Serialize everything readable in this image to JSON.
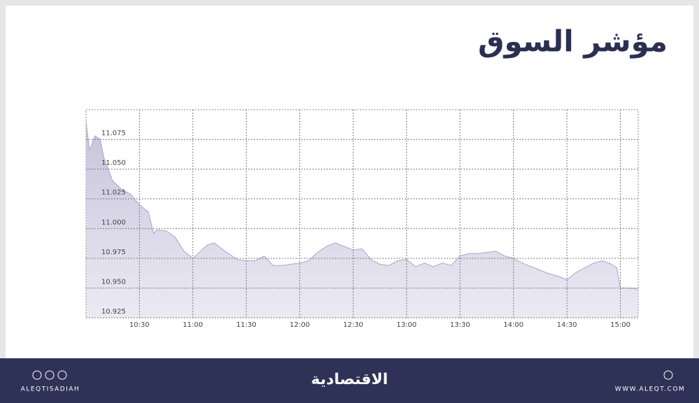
{
  "chart_data": {
    "type": "area",
    "title": "مؤشر السوق",
    "x": [
      "10:00",
      "10:02",
      "10:05",
      "10:08",
      "10:10",
      "10:15",
      "10:20",
      "10:25",
      "10:30",
      "10:35",
      "10:38",
      "10:40",
      "10:45",
      "10:50",
      "10:55",
      "11:00",
      "11:05",
      "11:08",
      "11:12",
      "11:18",
      "11:25",
      "11:30",
      "11:35",
      "11:40",
      "11:45",
      "11:50",
      "11:55",
      "12:00",
      "12:05",
      "12:10",
      "12:15",
      "12:20",
      "12:25",
      "12:30",
      "12:35",
      "12:40",
      "12:45",
      "12:50",
      "12:55",
      "13:00",
      "13:05",
      "13:10",
      "13:15",
      "13:20",
      "13:25",
      "13:30",
      "13:35",
      "13:40",
      "13:45",
      "13:50",
      "13:55",
      "14:00",
      "14:05",
      "14:10",
      "14:15",
      "14:20",
      "14:25",
      "14:30",
      "14:35",
      "14:40",
      "14:45",
      "14:50",
      "14:55",
      "14:58",
      "15:00",
      "15:05",
      "15:10"
    ],
    "values": [
      11.09,
      11.066,
      11.078,
      11.075,
      11.06,
      11.04,
      11.033,
      11.029,
      11.02,
      11.014,
      10.996,
      10.999,
      10.998,
      10.993,
      10.981,
      10.975,
      10.982,
      10.986,
      10.988,
      10.981,
      10.974,
      10.973,
      10.973,
      10.977,
      10.969,
      10.969,
      10.97,
      10.971,
      10.973,
      10.98,
      10.985,
      10.988,
      10.985,
      10.982,
      10.983,
      10.974,
      10.97,
      10.969,
      10.973,
      10.974,
      10.968,
      10.971,
      10.968,
      10.971,
      10.969,
      10.977,
      10.979,
      10.979,
      10.98,
      10.981,
      10.977,
      10.975,
      10.971,
      10.968,
      10.965,
      10.962,
      10.96,
      10.957,
      10.963,
      10.967,
      10.971,
      10.973,
      10.97,
      10.967,
      10.95,
      10.95,
      10.949
    ],
    "color": "#c7c3dc",
    "xlim": [
      "10:00",
      "15:10"
    ],
    "xticks": [
      "10:30",
      "11:00",
      "11:30",
      "12:00",
      "12:30",
      "13:00",
      "13:30",
      "14:00",
      "14:30",
      "15:00"
    ],
    "ylim": [
      10.925,
      11.1
    ],
    "yticks": [
      {
        "value": 10.925,
        "label": "10.925"
      },
      {
        "value": 10.95,
        "label": "10.950"
      },
      {
        "value": 10.975,
        "label": "10.975"
      },
      {
        "value": 11,
        "label": "11.000"
      },
      {
        "value": 11.025,
        "label": "11.025"
      },
      {
        "value": 11.05,
        "label": "11.050"
      },
      {
        "value": 11.075,
        "label": "11.075"
      }
    ],
    "grid": true
  },
  "footer": {
    "social": "ALEQTISADIAH",
    "logo": "الاقتصادية",
    "website": "WWW.ALEQT.COM"
  }
}
